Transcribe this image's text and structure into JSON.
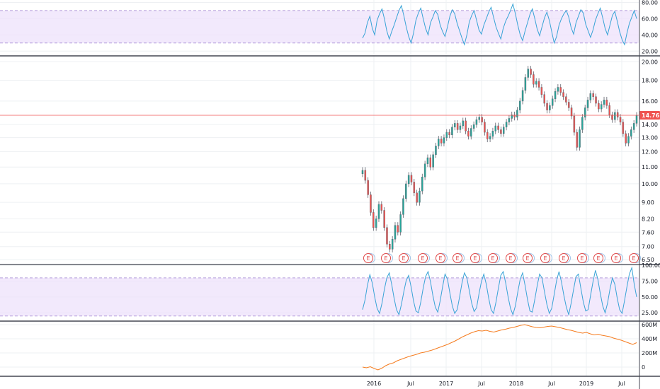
{
  "chart_data": [
    {
      "type": "line",
      "id": "rsi-top",
      "ylim": [
        15,
        83
      ],
      "y_ticks": [
        "20.00",
        "40.00",
        "60.00",
        "80.00"
      ],
      "y_tick_values": [
        20,
        40,
        60,
        80
      ],
      "band": [
        30,
        70
      ],
      "series": [
        {
          "color": "#38a3d6",
          "values": [
            36,
            42,
            55,
            63,
            48,
            40,
            58,
            66,
            72,
            60,
            45,
            35,
            44,
            52,
            61,
            70,
            76,
            64,
            50,
            38,
            30,
            42,
            58,
            67,
            73,
            60,
            48,
            40,
            55,
            62,
            70,
            65,
            52,
            44,
            38,
            50,
            63,
            71,
            66,
            54,
            45,
            36,
            28,
            40,
            56,
            64,
            70,
            58,
            46,
            41,
            52,
            60,
            68,
            74,
            62,
            50,
            42,
            35,
            48,
            57,
            63,
            70,
            78,
            66,
            52,
            40,
            33,
            45,
            55,
            65,
            72,
            60,
            47,
            39,
            50,
            61,
            68,
            58,
            44,
            30,
            38,
            52,
            60,
            66,
            70,
            62,
            49,
            41,
            55,
            63,
            71,
            67,
            53,
            45,
            37,
            46,
            58,
            66,
            73,
            61,
            48,
            40,
            52,
            64,
            69,
            57,
            44,
            34,
            28,
            42,
            54,
            62,
            70,
            60
          ]
        }
      ]
    },
    {
      "type": "line",
      "id": "price",
      "ylim": [
        6.35,
        20.6
      ],
      "log_scale": true,
      "y_ticks": [
        "6.50",
        "7.00",
        "7.60",
        "8.20",
        "9.00",
        "10.00",
        "11.00",
        "12.00",
        "13.00",
        "14.00",
        "16.00",
        "18.00",
        "20.00"
      ],
      "y_tick_values": [
        6.5,
        7.0,
        7.6,
        8.2,
        9.0,
        10.0,
        11.0,
        12.0,
        13.0,
        14.0,
        16.0,
        18.0,
        20.0
      ],
      "x_ticks": [
        "2016",
        "Jul",
        "2017",
        "Jul",
        "2018",
        "Jul",
        "2019",
        "Jul"
      ],
      "x_tick_values": [
        "2016-01",
        "2016-07",
        "2017-01",
        "2017-07",
        "2018-01",
        "2018-07",
        "2019-01",
        "2019-07"
      ],
      "last_price": "14.76",
      "last_value": 14.76,
      "earnings_marker": "E",
      "series": [
        {
          "name": "",
          "color": "#26a69a",
          "values": [
            10.8,
            10.2,
            9.4,
            8.5,
            7.8,
            8.2,
            8.9,
            8.6,
            7.8,
            7.1,
            6.9,
            7.3,
            7.9,
            7.6,
            8.4,
            9.2,
            10.0,
            10.5,
            10.1,
            9.5,
            9.0,
            9.6,
            10.4,
            11.2,
            11.6,
            11.0,
            11.8,
            12.4,
            12.9,
            12.6,
            13.0,
            13.4,
            13.2,
            13.8,
            14.1,
            13.6,
            13.9,
            14.3,
            13.5,
            13.1,
            13.7,
            14.0,
            14.4,
            14.6,
            14.2,
            13.4,
            12.9,
            13.1,
            13.5,
            13.9,
            13.6,
            13.3,
            13.8,
            14.2,
            14.5,
            14.8,
            14.6,
            15.2,
            16.0,
            17.0,
            18.3,
            19.2,
            18.6,
            17.6,
            17.9,
            17.3,
            16.6,
            15.8,
            15.2,
            15.6,
            16.2,
            16.9,
            17.3,
            16.8,
            16.4,
            15.9,
            15.4,
            14.7,
            13.4,
            12.3,
            13.6,
            14.6,
            15.4,
            16.1,
            16.7,
            16.4,
            15.8,
            15.3,
            15.7,
            16.1,
            15.6,
            14.8,
            14.4,
            15.0,
            14.6,
            14.2,
            13.3,
            12.6,
            13.1,
            13.6,
            14.1,
            14.76
          ]
        }
      ]
    },
    {
      "type": "line",
      "id": "stoch-rsi",
      "ylim": [
        13,
        100
      ],
      "y_ticks": [
        "25.00",
        "50.00",
        "75.00",
        "100.00"
      ],
      "y_tick_values": [
        25,
        50,
        75,
        100
      ],
      "band": [
        20,
        80
      ],
      "series": [
        {
          "color": "#38a3d6",
          "values": [
            30,
            45,
            68,
            85,
            72,
            50,
            32,
            24,
            40,
            62,
            80,
            88,
            70,
            48,
            30,
            22,
            38,
            58,
            76,
            84,
            66,
            44,
            28,
            25,
            42,
            64,
            82,
            90,
            74,
            52,
            34,
            26,
            44,
            66,
            86,
            78,
            56,
            36,
            24,
            30,
            50,
            72,
            88,
            80,
            60,
            40,
            27,
            33,
            55,
            74,
            86,
            70,
            48,
            30,
            24,
            42,
            64,
            84,
            90,
            72,
            50,
            32,
            22,
            36,
            58,
            78,
            88,
            68,
            46,
            28,
            26,
            46,
            68,
            86,
            80,
            58,
            38,
            24,
            32,
            54,
            76,
            90,
            74,
            52,
            34,
            22,
            40,
            62,
            82,
            86,
            64,
            42,
            28,
            30,
            52,
            74,
            92,
            78,
            56,
            36,
            25,
            40,
            62,
            80,
            70,
            48,
            30,
            24,
            44,
            66,
            86,
            96,
            70,
            50
          ]
        }
      ]
    },
    {
      "type": "area",
      "id": "obv",
      "ylim": [
        -120,
        640
      ],
      "y_ticks": [
        "0",
        "200M",
        "400M",
        "600M"
      ],
      "y_tick_values": [
        0,
        200,
        400,
        600
      ],
      "series": [
        {
          "color": "#f57c1f",
          "values": [
            0,
            -10,
            5,
            -20,
            -40,
            -15,
            20,
            45,
            60,
            90,
            110,
            130,
            150,
            165,
            180,
            200,
            210,
            225,
            240,
            260,
            280,
            300,
            320,
            345,
            370,
            400,
            430,
            455,
            480,
            500,
            515,
            510,
            520,
            505,
            495,
            510,
            525,
            535,
            550,
            560,
            575,
            590,
            600,
            585,
            570,
            560,
            555,
            565,
            575,
            580,
            570,
            560,
            545,
            530,
            520,
            505,
            490,
            480,
            490,
            470,
            455,
            465,
            450,
            440,
            430,
            410,
            395,
            380,
            360,
            340,
            320,
            345
          ]
        }
      ]
    }
  ]
}
